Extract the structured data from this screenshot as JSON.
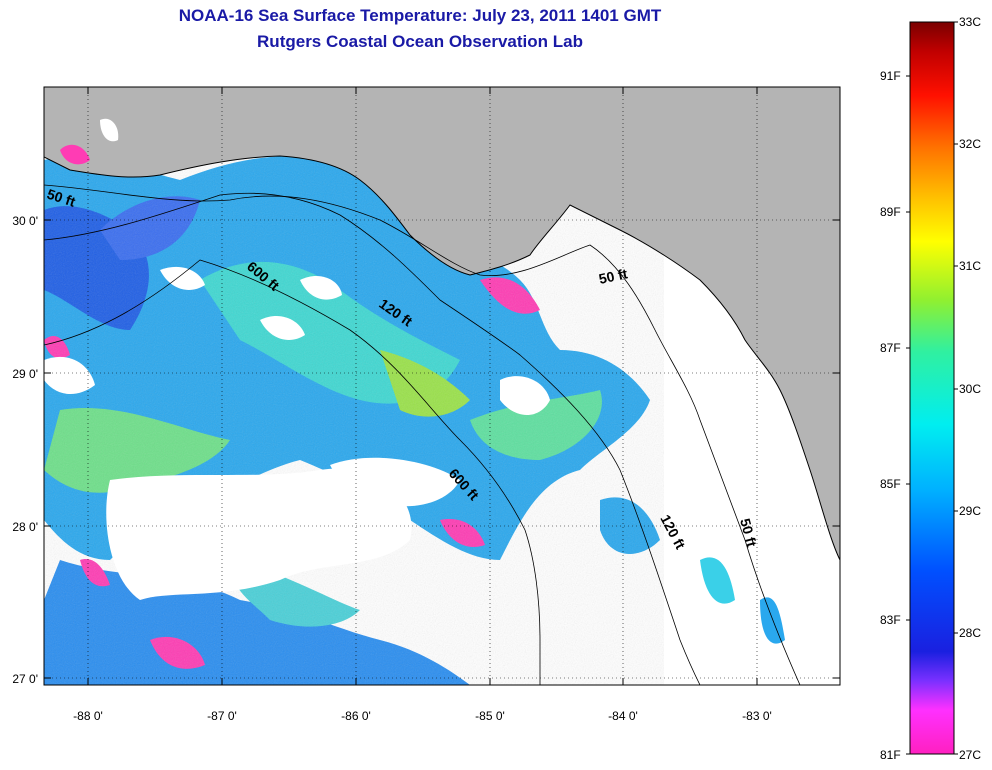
{
  "title": "NOAA-16 Sea Surface Temperature:  July 23, 2011 1401 GMT",
  "subtitle": "Rutgers Coastal Ocean Observation Lab",
  "map": {
    "lon_range": [
      -88.33,
      -82.45
    ],
    "lat_range": [
      26.93,
      30.85
    ],
    "lon_ticks": [
      "-88 0'",
      "-87 0'",
      "-86 0'",
      "-85 0'",
      "-84 0'",
      "-83 0'"
    ],
    "lat_ticks": [
      "27 0'",
      "28 0'",
      "29 0'",
      "30 0'"
    ],
    "land_color": "#b4b4b4",
    "no_data_color": "#ffffff",
    "contour_labels": [
      "50 ft",
      "600 ft",
      "120 ft",
      "600 ft",
      "50 ft",
      "120 ft",
      "50 ft"
    ]
  },
  "colorbar": {
    "celsius_labels": [
      "33C",
      "32C",
      "31C",
      "30C",
      "29C",
      "28C",
      "27C"
    ],
    "fahrenheit_labels": [
      "91F",
      "89F",
      "87F",
      "85F",
      "83F",
      "81F"
    ],
    "range_c": [
      27,
      33
    ],
    "gradient_colors": [
      "#ff1fbf",
      "#ff30ff",
      "#8030ff",
      "#2020e0",
      "#0050ff",
      "#00aaff",
      "#00e8f0",
      "#30f0a0",
      "#a0f020",
      "#ffff00",
      "#ffb000",
      "#ff6000",
      "#ff0000",
      "#c00000",
      "#800000"
    ]
  }
}
